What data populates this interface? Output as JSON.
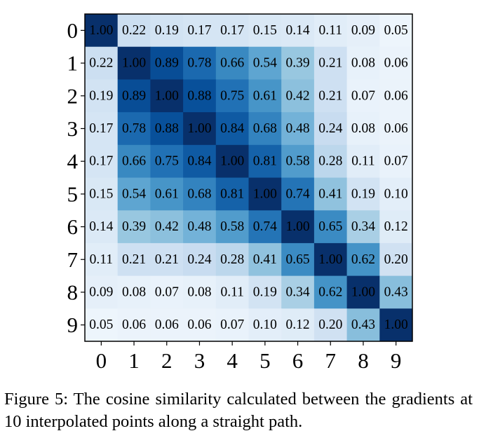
{
  "chart_data": {
    "type": "heatmap",
    "title": "",
    "xlabel": "",
    "ylabel": "",
    "x_categories": [
      "0",
      "1",
      "2",
      "3",
      "4",
      "5",
      "6",
      "7",
      "8",
      "9"
    ],
    "y_categories": [
      "0",
      "1",
      "2",
      "3",
      "4",
      "5",
      "6",
      "7",
      "8",
      "9"
    ],
    "value_range": [
      0,
      1
    ],
    "colormap": "Blues",
    "values": [
      [
        1.0,
        0.22,
        0.19,
        0.17,
        0.17,
        0.15,
        0.14,
        0.11,
        0.09,
        0.05
      ],
      [
        0.22,
        1.0,
        0.89,
        0.78,
        0.66,
        0.54,
        0.39,
        0.21,
        0.08,
        0.06
      ],
      [
        0.19,
        0.89,
        1.0,
        0.88,
        0.75,
        0.61,
        0.42,
        0.21,
        0.07,
        0.06
      ],
      [
        0.17,
        0.78,
        0.88,
        1.0,
        0.84,
        0.68,
        0.48,
        0.24,
        0.08,
        0.06
      ],
      [
        0.17,
        0.66,
        0.75,
        0.84,
        1.0,
        0.81,
        0.58,
        0.28,
        0.11,
        0.07
      ],
      [
        0.15,
        0.54,
        0.61,
        0.68,
        0.81,
        1.0,
        0.74,
        0.41,
        0.19,
        0.1
      ],
      [
        0.14,
        0.39,
        0.42,
        0.48,
        0.58,
        0.74,
        1.0,
        0.65,
        0.34,
        0.12
      ],
      [
        0.11,
        0.21,
        0.21,
        0.24,
        0.28,
        0.41,
        0.65,
        1.0,
        0.62,
        0.2
      ],
      [
        0.09,
        0.08,
        0.07,
        0.08,
        0.11,
        0.19,
        0.34,
        0.62,
        1.0,
        0.43
      ],
      [
        0.05,
        0.06,
        0.06,
        0.06,
        0.07,
        0.1,
        0.12,
        0.2,
        0.43,
        1.0
      ]
    ],
    "grid": false,
    "legend": "none"
  },
  "caption": {
    "text": "Figure 5: The cosine similarity calculated between the gradients at 10 interpolated points along a straight path."
  }
}
